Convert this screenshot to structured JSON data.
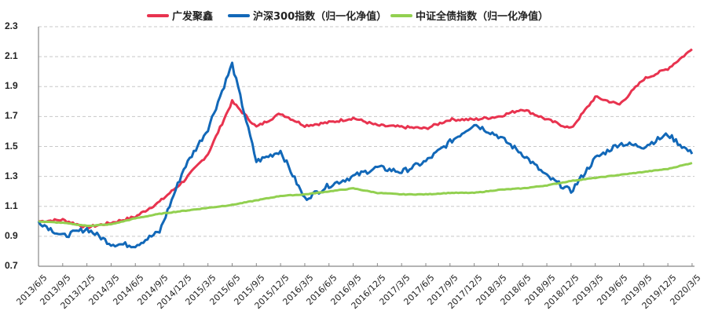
{
  "chart_data": {
    "type": "line",
    "title": "",
    "xlabel": "",
    "ylabel": "",
    "ylim": [
      0.7,
      2.3
    ],
    "yticks": [
      "2.3",
      "2.1",
      "1.9",
      "1.7",
      "1.5",
      "1.3",
      "1.1",
      "0.9",
      "0.7"
    ],
    "grid": "horizontal dashed",
    "legend_position": "top",
    "categories": [
      "2013/6/5",
      "2013/9/5",
      "2013/12/5",
      "2014/3/5",
      "2014/6/5",
      "2014/9/5",
      "2014/12/5",
      "2015/3/5",
      "2015/6/5",
      "2015/9/5",
      "2015/12/5",
      "2016/3/5",
      "2016/6/5",
      "2016/9/5",
      "2016/12/5",
      "2017/3/5",
      "2017/6/5",
      "2017/9/5",
      "2017/12/5",
      "2018/3/5",
      "2018/6/5",
      "2018/9/5",
      "2018/12/5",
      "2019/3/5",
      "2019/6/5",
      "2019/9/5",
      "2019/12/5",
      "2020/3/5"
    ],
    "series": [
      {
        "name": "广发聚鑫",
        "color": "#E8334F",
        "values": [
          1.0,
          1.01,
          0.96,
          0.99,
          1.03,
          1.13,
          1.27,
          1.45,
          1.8,
          1.63,
          1.72,
          1.64,
          1.66,
          1.69,
          1.64,
          1.63,
          1.62,
          1.68,
          1.68,
          1.7,
          1.75,
          1.68,
          1.62,
          1.83,
          1.78,
          1.95,
          2.02,
          2.15
        ]
      },
      {
        "name": "沪深300指数（归一化净值）",
        "color": "#1268B8",
        "values": [
          1.0,
          0.9,
          0.95,
          0.85,
          0.84,
          0.93,
          1.35,
          1.62,
          2.05,
          1.4,
          1.47,
          1.15,
          1.24,
          1.3,
          1.36,
          1.33,
          1.4,
          1.53,
          1.65,
          1.57,
          1.45,
          1.3,
          1.2,
          1.42,
          1.52,
          1.5,
          1.58,
          1.45
        ]
      },
      {
        "name": "中证全债指数（归一化净值）",
        "color": "#92D050",
        "values": [
          1.0,
          0.99,
          0.97,
          0.98,
          1.02,
          1.05,
          1.07,
          1.09,
          1.11,
          1.14,
          1.17,
          1.18,
          1.2,
          1.22,
          1.19,
          1.18,
          1.18,
          1.19,
          1.19,
          1.21,
          1.22,
          1.24,
          1.27,
          1.29,
          1.31,
          1.33,
          1.35,
          1.39
        ]
      }
    ]
  },
  "legend": {
    "items": [
      {
        "label": "广发聚鑫",
        "color": "#E8334F"
      },
      {
        "label": "沪深300指数（归一化净值）",
        "color": "#1268B8"
      },
      {
        "label": "中证全债指数（归一化净值）",
        "color": "#92D050"
      }
    ]
  }
}
